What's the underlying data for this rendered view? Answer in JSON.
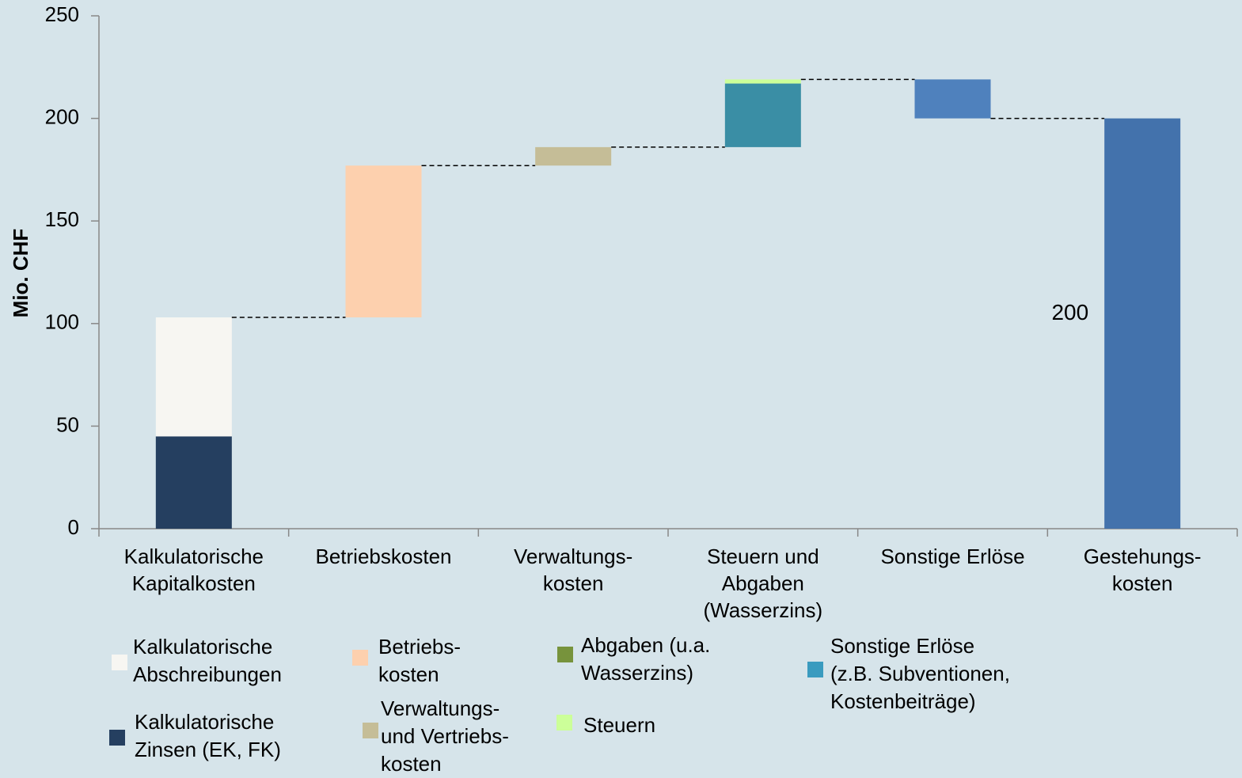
{
  "chart_data": {
    "type": "waterfall",
    "y_label": "Mio. CHF",
    "categories": [
      "Kalkulatorische\nKapitalkosten",
      "Betriebskosten",
      "Verwaltungs-\nkosten",
      "Steuern und\nAbgaben\n(Wasserzins)",
      "Sonstige Erlöse",
      "Gestehungs-\nkosten"
    ],
    "series": [
      {
        "name": "Kalkulatorische\nZinsen (EK, FK)",
        "color": "#253f60",
        "values": [
          45,
          null,
          null,
          null,
          null,
          null
        ]
      },
      {
        "name": "Kalkulatorische\nAbschreibungen",
        "color": "#f7f6f2",
        "values": [
          58,
          null,
          null,
          null,
          null,
          null
        ]
      },
      {
        "name": "Betriebs-\nkosten",
        "color": "#fdd0ae",
        "values": [
          null,
          74,
          null,
          null,
          null,
          null
        ]
      },
      {
        "name": "Verwaltungs-\nund Vertriebs-\nkosten",
        "color": "#c5bd97",
        "values": [
          null,
          null,
          9,
          null,
          null,
          null
        ]
      },
      {
        "name": "Abgaben (u.a.\nWasserzins)",
        "color": "#77933c",
        "bar_color": "#3a8ea5",
        "values": [
          null,
          null,
          null,
          31,
          null,
          null
        ]
      },
      {
        "name": "Steuern",
        "color": "#ccff99",
        "values": [
          null,
          null,
          null,
          2,
          null,
          null
        ]
      },
      {
        "name": "Sonstige Erlöse\n(z.B. Subventionen,\nKostenbeiträge)",
        "color": "#3a9bbf",
        "bar_color": "#4f81bd",
        "values": [
          null,
          null,
          null,
          null,
          -19,
          null
        ]
      }
    ],
    "total": {
      "color": "#4372ac",
      "values": [
        null,
        null,
        null,
        null,
        null,
        200
      ]
    },
    "ylim": [
      0,
      250
    ],
    "yticks": [
      0,
      50,
      100,
      150,
      200,
      250
    ],
    "grid": false
  }
}
